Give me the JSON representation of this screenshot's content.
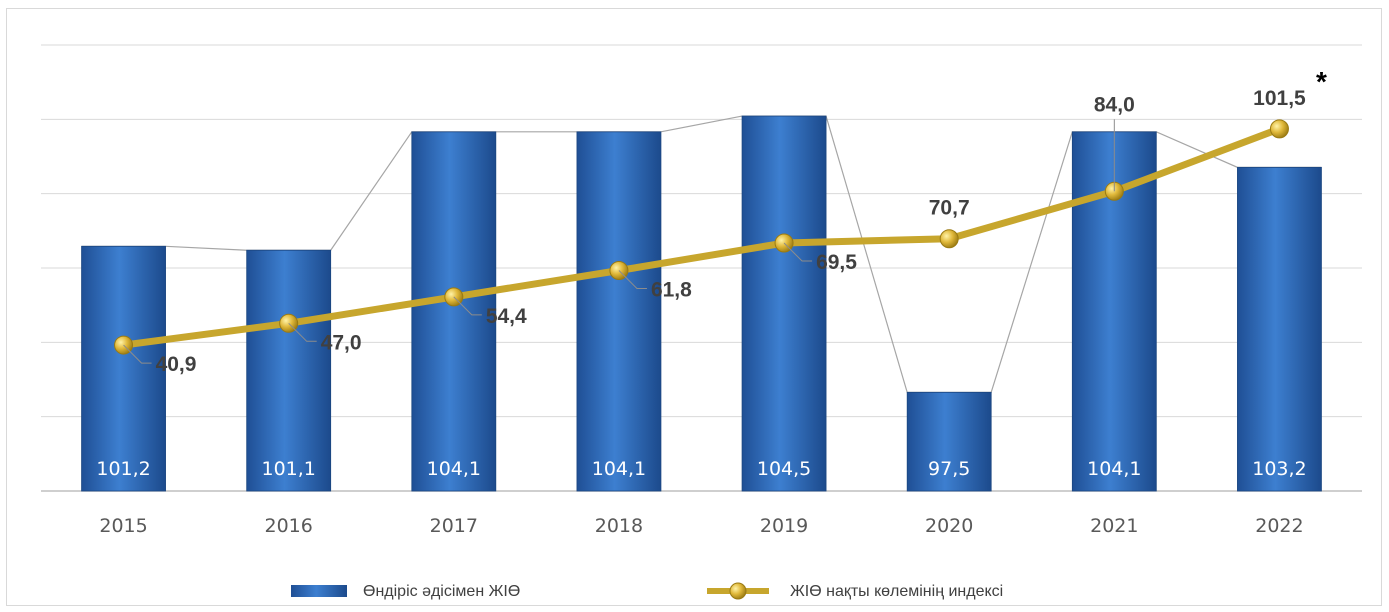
{
  "chart_data": {
    "type": "bar",
    "categories": [
      "2015",
      "2016",
      "2017",
      "2018",
      "2019",
      "2020",
      "2021",
      "2022"
    ],
    "series": [
      {
        "name": "Өндіріс әдісімен ЖІӨ",
        "type": "bar",
        "values": [
          101.2,
          101.1,
          104.1,
          104.1,
          104.5,
          97.5,
          104.1,
          103.2
        ],
        "labels": [
          "101,2",
          "101,1",
          "104,1",
          "104,1",
          "104,5",
          "97,5",
          "104,1",
          "103,2"
        ],
        "color": "#2f6fc0"
      },
      {
        "name": "ЖІӨ нақты көлемінің индексі",
        "type": "line",
        "values": [
          40.9,
          47.0,
          54.4,
          61.8,
          69.5,
          70.7,
          84.0,
          101.5
        ],
        "labels": [
          "40,9",
          "47,0",
          "54,4",
          "61,8",
          "69,5",
          "70,7",
          "84,0",
          "101,5"
        ],
        "color": "#c7a62d"
      }
    ],
    "annotation": "*",
    "grid": true,
    "legend_position": "bottom"
  }
}
